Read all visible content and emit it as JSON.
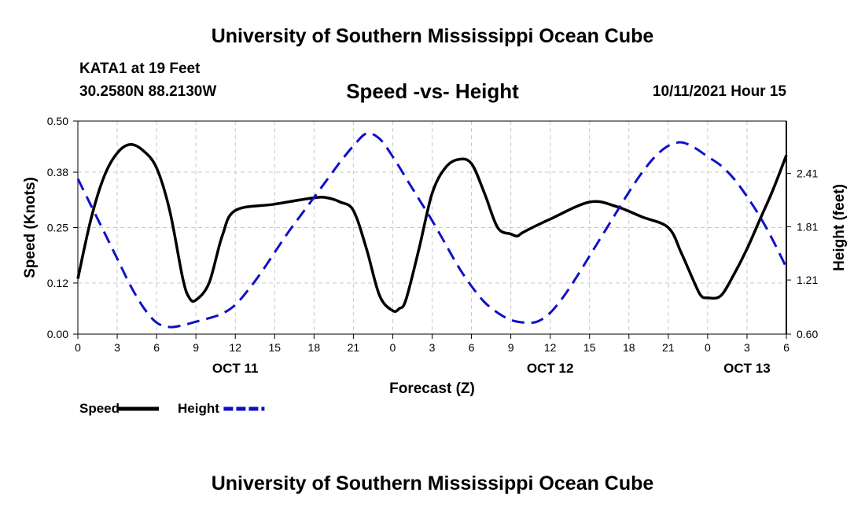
{
  "header": {
    "org_title": "University of Southern Mississippi Ocean Cube",
    "station": "KATA1 at 19 Feet",
    "coords": "30.2580N  88.2130W",
    "chart_title": "Speed -vs- Height",
    "datetime": "10/11/2021 Hour 15"
  },
  "footer": {
    "org_title": "University of Southern Mississippi Ocean Cube"
  },
  "colors": {
    "speed": "#000000",
    "height": "#1010c8",
    "grid": "#c8c8c8"
  },
  "chart_data": {
    "type": "line",
    "title": "Speed -vs- Height",
    "xlabel": "Forecast (Z)",
    "ylabel": "Speed (Knots)",
    "ylabel_right": "Height (feet)",
    "x_range": [
      0,
      54
    ],
    "x_tick_step": 3,
    "x_tick_labels": [
      "0",
      "3",
      "6",
      "9",
      "12",
      "15",
      "18",
      "21",
      "0",
      "3",
      "6",
      "9",
      "12",
      "15",
      "18",
      "21",
      "0",
      "3",
      "6"
    ],
    "date_labels": [
      {
        "label": "OCT 11",
        "x": 12
      },
      {
        "label": "OCT 12",
        "x": 36
      },
      {
        "label": "OCT 13",
        "x": 51
      }
    ],
    "ylim": [
      0,
      0.5
    ],
    "y_ticks": [
      0.0,
      0.12,
      0.25,
      0.38,
      0.5
    ],
    "y_tick_labels": [
      "0.00",
      "0.12",
      "0.25",
      "0.38",
      "0.50"
    ],
    "ylim_right": [
      0.6,
      3.0
    ],
    "y_ticks_right": [
      0.6,
      1.21,
      1.81,
      2.41
    ],
    "y_tick_labels_right": [
      "0.60",
      "1.21",
      "1.81",
      "2.41"
    ],
    "grid": true,
    "legend": [
      {
        "name": "Speed",
        "style": "solid"
      },
      {
        "name": "Height",
        "style": "dashed"
      }
    ],
    "series": [
      {
        "name": "Speed",
        "axis": "left",
        "style": "solid",
        "x": [
          0,
          1,
          2,
          3,
          4,
          5,
          6,
          7,
          8,
          8.5,
          9,
          10,
          11,
          12,
          15,
          18,
          19,
          20,
          21,
          22,
          23,
          24,
          24.5,
          25,
          26,
          27,
          28,
          29,
          30,
          31,
          32,
          33,
          33.5,
          34,
          36,
          39,
          41,
          43,
          45,
          46,
          47,
          47.5,
          48,
          49,
          50,
          51,
          52,
          53,
          54
        ],
        "y": [
          0.13,
          0.27,
          0.37,
          0.425,
          0.445,
          0.43,
          0.39,
          0.29,
          0.13,
          0.085,
          0.08,
          0.12,
          0.23,
          0.29,
          0.305,
          0.32,
          0.32,
          0.31,
          0.29,
          0.2,
          0.09,
          0.055,
          0.06,
          0.08,
          0.2,
          0.33,
          0.39,
          0.41,
          0.4,
          0.33,
          0.25,
          0.235,
          0.23,
          0.24,
          0.27,
          0.31,
          0.3,
          0.275,
          0.25,
          0.19,
          0.12,
          0.09,
          0.085,
          0.09,
          0.14,
          0.2,
          0.27,
          0.34,
          0.42
        ]
      },
      {
        "name": "Height",
        "axis": "right",
        "style": "dashed",
        "x": [
          0,
          1,
          2,
          3,
          4,
          5,
          6,
          7,
          8,
          9,
          10,
          11,
          12,
          13,
          14,
          15,
          16,
          17,
          18,
          19,
          20,
          21,
          22,
          23,
          24,
          25,
          26,
          27,
          28,
          29,
          30,
          31,
          32,
          33,
          34,
          35,
          36,
          37,
          38,
          39,
          40,
          41,
          42,
          43,
          44,
          45,
          46,
          47,
          48,
          49,
          50,
          51,
          52,
          53,
          54
        ],
        "y": [
          2.35,
          2.05,
          1.75,
          1.45,
          1.15,
          0.9,
          0.73,
          0.68,
          0.7,
          0.74,
          0.78,
          0.83,
          0.93,
          1.1,
          1.3,
          1.52,
          1.74,
          1.94,
          2.14,
          2.34,
          2.54,
          2.72,
          2.86,
          2.8,
          2.6,
          2.36,
          2.12,
          1.88,
          1.62,
          1.36,
          1.14,
          0.96,
          0.84,
          0.76,
          0.73,
          0.74,
          0.84,
          1.02,
          1.24,
          1.48,
          1.72,
          1.96,
          2.2,
          2.42,
          2.6,
          2.72,
          2.76,
          2.7,
          2.6,
          2.5,
          2.35,
          2.15,
          1.92,
          1.65,
          1.35
        ]
      }
    ]
  }
}
